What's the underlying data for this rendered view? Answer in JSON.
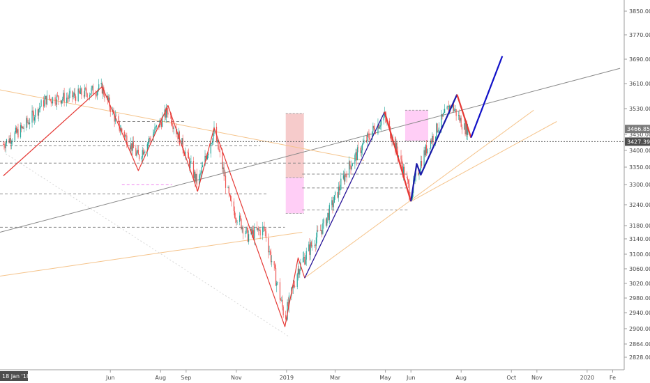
{
  "chart_data": {
    "type": "candlestick",
    "title": "",
    "y_axis": {
      "position": "right",
      "ticks": [
        2828.0,
        2864.0,
        2900.0,
        2940.0,
        2980.0,
        3020.0,
        3060.0,
        3100.0,
        3140.0,
        3180.0,
        3240.0,
        3300.0,
        3350.0,
        3400.0,
        3450.0,
        3530.0,
        3610.0,
        3690.0,
        3770.0,
        3850.0
      ],
      "tick_labels": [
        "2828.00",
        "2864.00",
        "2900.00",
        "2940.00",
        "2980.00",
        "3020.00",
        "3060.00",
        "3100.00",
        "3140.00",
        "3180.00",
        "3240.00",
        "3300.00",
        "3350.00",
        "3400.00",
        "3450.00",
        "3530.00",
        "3610.00",
        "3690.00",
        "3770.00",
        "3850.00"
      ]
    },
    "x_axis": {
      "start_label": "18 Jan '18",
      "labels": [
        "Jun",
        "Aug",
        "Sep",
        "Nov",
        "2019",
        "Mar",
        "May",
        "Jun",
        "Aug",
        "Oct",
        "Nov",
        "2020",
        "Fe"
      ]
    },
    "price_badges": [
      {
        "value": "3466.85",
        "color": "#7a7a7a"
      },
      {
        "value": "3427.39",
        "color": "#4d4d4d"
      }
    ],
    "last_price_line": 3427.39,
    "red_zigzag": [
      {
        "x": "2018-01-22",
        "y": 3325
      },
      {
        "x": "2018-05-22",
        "y": 3600
      },
      {
        "x": "2018-07-05",
        "y": 3340
      },
      {
        "x": "2018-08-10",
        "y": 3540
      },
      {
        "x": "2018-09-15",
        "y": 3280
      },
      {
        "x": "2018-10-05",
        "y": 3470
      },
      {
        "x": "2018-12-30",
        "y": 2905
      },
      {
        "x": "2019-01-15",
        "y": 3090
      },
      {
        "x": "2019-01-23",
        "y": 3035
      },
      {
        "x": "2019-04-30",
        "y": 3520
      }
    ],
    "blue_path": [
      {
        "x": "2019-01-23",
        "y": 3035
      },
      {
        "x": "2019-04-30",
        "y": 3520
      }
    ],
    "red_swing_2019": [
      {
        "x": "2019-04-30",
        "y": 3520
      },
      {
        "x": "2019-06-01",
        "y": 3250
      }
    ],
    "blue_swing_2019": [
      {
        "x": "2019-06-01",
        "y": 3250
      },
      {
        "x": "2019-06-08",
        "y": 3360
      },
      {
        "x": "2019-06-13",
        "y": 3328
      },
      {
        "x": "2019-07-27",
        "y": 3575
      }
    ],
    "red_swing_recent": [
      {
        "x": "2019-07-27",
        "y": 3575
      },
      {
        "x": "2019-08-13",
        "y": 3440
      }
    ],
    "blue_projection": [
      {
        "x": "2019-08-13",
        "y": 3440
      },
      {
        "x": "2019-09-20",
        "y": 3700
      }
    ],
    "trendlines": [
      {
        "color": "#888888",
        "from": {
          "x": "2018-01-18",
          "y": 3160
        },
        "to": {
          "x": "2020-02-10",
          "y": 3660
        }
      },
      {
        "color": "#f5c38a",
        "from": {
          "x": "2018-01-18",
          "y": 3590
        },
        "to": {
          "x": "2019-04-05",
          "y": 3370
        }
      },
      {
        "color": "#f5c38a",
        "from": {
          "x": "2018-01-18",
          "y": 3040
        },
        "to": {
          "x": "2019-01-20",
          "y": 3160
        }
      },
      {
        "color": "#f5c38a",
        "from": {
          "x": "2019-01-23",
          "y": 3035
        },
        "to": {
          "x": "2019-10-28",
          "y": 3525
        }
      },
      {
        "color": "#f5c38a",
        "from": {
          "x": "2019-06-01",
          "y": 3250
        },
        "to": {
          "x": "2019-11-25",
          "y": 3490
        }
      }
    ],
    "horizontal_levels": [
      {
        "y": 3490,
        "from": "2018-06-10",
        "to": "2018-09-01",
        "color": "#888888"
      },
      {
        "y": 3415,
        "from": "2018-01-18",
        "to": "2018-11-30",
        "color": "#888888"
      },
      {
        "y": 3362,
        "from": "2018-01-18",
        "to": "2019-05-30",
        "color": "#888888"
      },
      {
        "y": 3272,
        "from": "2018-01-18",
        "to": "2018-12-10",
        "color": "#888888"
      },
      {
        "y": 3175,
        "from": "2018-01-18",
        "to": "2018-12-30",
        "color": "#888888"
      },
      {
        "y": 3330,
        "from": "2019-01-20",
        "to": "2019-05-30",
        "color": "#888888"
      },
      {
        "y": 3290,
        "from": "2019-01-20",
        "to": "2019-05-30",
        "color": "#888888"
      },
      {
        "y": 3225,
        "from": "2019-01-20",
        "to": "2019-05-30",
        "color": "#888888"
      },
      {
        "y": 3300,
        "from": "2018-06-15",
        "to": "2018-08-15",
        "color": "#ee82ee"
      }
    ],
    "boxes": [
      {
        "from": "2018-12-31",
        "to": "2019-01-22",
        "y_top": 3515,
        "y_bottom": 3320,
        "color": "#f4c2c2"
      },
      {
        "from": "2018-12-31",
        "to": "2019-01-22",
        "y_top": 3320,
        "y_bottom": 3215,
        "color": "#ffc6f5"
      },
      {
        "from": "2019-05-25",
        "to": "2019-06-22",
        "y_top": 3525,
        "y_bottom": 3430,
        "color": "#ffc6f5"
      }
    ],
    "candles_anchor_closes": [
      {
        "x": "2018-01-22",
        "y": 3420
      },
      {
        "x": "2018-02-15",
        "y": 3470
      },
      {
        "x": "2018-03-15",
        "y": 3560
      },
      {
        "x": "2018-04-10",
        "y": 3565
      },
      {
        "x": "2018-05-22",
        "y": 3595
      },
      {
        "x": "2018-06-10",
        "y": 3480
      },
      {
        "x": "2018-07-05",
        "y": 3380
      },
      {
        "x": "2018-08-10",
        "y": 3525
      },
      {
        "x": "2018-09-15",
        "y": 3300
      },
      {
        "x": "2018-10-05",
        "y": 3460
      },
      {
        "x": "2018-10-25",
        "y": 3240
      },
      {
        "x": "2018-11-15",
        "y": 3150
      },
      {
        "x": "2018-12-05",
        "y": 3170
      },
      {
        "x": "2018-12-30",
        "y": 2925
      },
      {
        "x": "2019-01-15",
        "y": 3060
      },
      {
        "x": "2019-02-15",
        "y": 3180
      },
      {
        "x": "2019-03-15",
        "y": 3340
      },
      {
        "x": "2019-04-15",
        "y": 3460
      },
      {
        "x": "2019-04-30",
        "y": 3505
      },
      {
        "x": "2019-05-15",
        "y": 3400
      },
      {
        "x": "2019-06-01",
        "y": 3270
      },
      {
        "x": "2019-06-15",
        "y": 3380
      },
      {
        "x": "2019-07-05",
        "y": 3480
      },
      {
        "x": "2019-07-20",
        "y": 3545
      },
      {
        "x": "2019-08-05",
        "y": 3470
      },
      {
        "x": "2019-08-10",
        "y": 3466.85
      }
    ]
  }
}
